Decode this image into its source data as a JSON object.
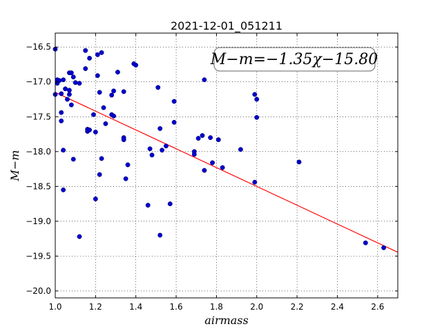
{
  "chart_data": {
    "type": "scatter",
    "title": "2021-12-01_051211",
    "xlabel": "airmass",
    "ylabel": "M−m",
    "xlim": [
      1.0,
      2.7
    ],
    "ylim": [
      -20.1,
      -16.3
    ],
    "y_inverted": true,
    "grid": true,
    "x_ticks": [
      1.0,
      1.2,
      1.4,
      1.6,
      1.8,
      2.0,
      2.2,
      2.4,
      2.6
    ],
    "x_tick_labels": [
      "1.0",
      "1.2",
      "1.4",
      "1.6",
      "1.8",
      "2.0",
      "2.2",
      "2.4",
      "2.6"
    ],
    "y_ticks": [
      -16.5,
      -17.0,
      -17.5,
      -18.0,
      -18.5,
      -19.0,
      -19.5,
      -20.0
    ],
    "y_tick_labels": [
      "−16.5",
      "−17.0",
      "−17.5",
      "−18.0",
      "−18.5",
      "−19.0",
      "−19.5",
      "−20.0"
    ],
    "annotation": "M−m=−1.35χ−15.80",
    "fit_line": {
      "slope": -1.35,
      "intercept": -15.8,
      "x_range": [
        1.0,
        2.7
      ],
      "color": "#ff0000"
    },
    "point_color": "#0000cc",
    "points": [
      [
        1.0,
        -16.53
      ],
      [
        1.01,
        -16.97
      ],
      [
        1.01,
        -17.02
      ],
      [
        1.0,
        -17.18
      ],
      [
        1.02,
        -16.98
      ],
      [
        1.04,
        -16.97
      ],
      [
        1.03,
        -17.17
      ],
      [
        1.05,
        -17.1
      ],
      [
        1.07,
        -17.12
      ],
      [
        1.06,
        -17.25
      ],
      [
        1.07,
        -17.18
      ],
      [
        1.07,
        -16.87
      ],
      [
        1.08,
        -16.87
      ],
      [
        1.09,
        -16.93
      ],
      [
        1.1,
        -17.01
      ],
      [
        1.12,
        -17.02
      ],
      [
        1.03,
        -17.44
      ],
      [
        1.03,
        -17.56
      ],
      [
        1.08,
        -17.33
      ],
      [
        1.04,
        -17.98
      ],
      [
        1.09,
        -18.11
      ],
      [
        1.04,
        -18.55
      ],
      [
        1.12,
        -19.22
      ],
      [
        1.15,
        -16.55
      ],
      [
        1.17,
        -16.66
      ],
      [
        1.15,
        -16.81
      ],
      [
        1.21,
        -16.61
      ],
      [
        1.23,
        -16.58
      ],
      [
        1.21,
        -16.91
      ],
      [
        1.16,
        -17.68
      ],
      [
        1.16,
        -17.71
      ],
      [
        1.17,
        -17.69
      ],
      [
        1.19,
        -17.47
      ],
      [
        1.2,
        -17.72
      ],
      [
        1.22,
        -17.15
      ],
      [
        1.24,
        -17.37
      ],
      [
        1.25,
        -17.6
      ],
      [
        1.23,
        -18.1
      ],
      [
        1.22,
        -18.33
      ],
      [
        1.2,
        -18.68
      ],
      [
        1.29,
        -17.13
      ],
      [
        1.28,
        -17.19
      ],
      [
        1.28,
        -17.47
      ],
      [
        1.29,
        -17.49
      ],
      [
        1.31,
        -16.86
      ],
      [
        1.34,
        -17.14
      ],
      [
        1.34,
        -17.8
      ],
      [
        1.34,
        -17.83
      ],
      [
        1.36,
        -18.19
      ],
      [
        1.35,
        -18.39
      ],
      [
        1.39,
        -16.74
      ],
      [
        1.4,
        -16.76
      ],
      [
        1.46,
        -18.77
      ],
      [
        1.47,
        -17.96
      ],
      [
        1.48,
        -18.05
      ],
      [
        1.51,
        -17.08
      ],
      [
        1.52,
        -17.67
      ],
      [
        1.53,
        -17.98
      ],
      [
        1.55,
        -17.92
      ],
      [
        1.52,
        -19.2
      ],
      [
        1.57,
        -18.75
      ],
      [
        1.59,
        -17.28
      ],
      [
        1.59,
        -17.58
      ],
      [
        1.69,
        -18.0
      ],
      [
        1.69,
        -18.04
      ],
      [
        1.71,
        -17.81
      ],
      [
        1.73,
        -17.77
      ],
      [
        1.74,
        -16.97
      ],
      [
        1.74,
        -18.27
      ],
      [
        1.77,
        -17.8
      ],
      [
        1.78,
        -18.16
      ],
      [
        1.81,
        -17.83
      ],
      [
        1.83,
        -18.23
      ],
      [
        1.92,
        -17.97
      ],
      [
        1.99,
        -17.18
      ],
      [
        2.0,
        -17.25
      ],
      [
        2.0,
        -17.51
      ],
      [
        1.99,
        -18.44
      ],
      [
        2.21,
        -18.15
      ],
      [
        2.54,
        -19.31
      ],
      [
        2.63,
        -19.38
      ]
    ]
  }
}
